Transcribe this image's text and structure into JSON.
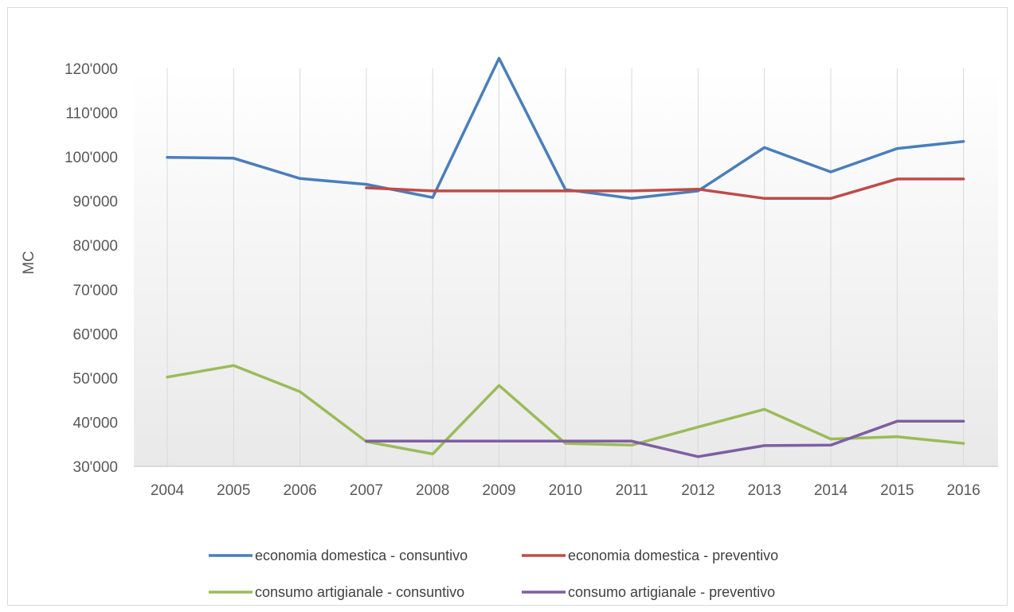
{
  "chart_data": {
    "type": "line",
    "title": "",
    "xlabel": "",
    "ylabel": "MC",
    "ylim": [
      30000,
      120000
    ],
    "y_ticks": [
      30000,
      40000,
      50000,
      60000,
      70000,
      80000,
      90000,
      100000,
      110000,
      120000
    ],
    "y_tick_labels": [
      "30'000",
      "40'000",
      "50'000",
      "60'000",
      "70'000",
      "80'000",
      "90'000",
      "100'000",
      "110'000",
      "120'000"
    ],
    "categories": [
      "2004",
      "2005",
      "2006",
      "2007",
      "2008",
      "2009",
      "2010",
      "2011",
      "2012",
      "2013",
      "2014",
      "2015",
      "2016"
    ],
    "grid": "vertical",
    "legend_position": "bottom",
    "series": [
      {
        "name": "economia domestica - consuntivo",
        "color": "#4a7ebb",
        "values": [
          99900,
          99700,
          95100,
          93800,
          90800,
          122300,
          92600,
          90600,
          92300,
          102100,
          96600,
          101900,
          103500
        ]
      },
      {
        "name": "economia domestica - preventivo",
        "color": "#be4b48",
        "values": [
          null,
          null,
          null,
          93000,
          92300,
          92300,
          92300,
          92300,
          92700,
          90600,
          90600,
          95000,
          95000
        ]
      },
      {
        "name": "consumo artigianale - consuntivo",
        "color": "#9bbb59",
        "values": [
          50200,
          52800,
          46900,
          35600,
          32800,
          48300,
          35200,
          34800,
          38900,
          42900,
          36200,
          36700,
          35200
        ]
      },
      {
        "name": "consumo artigianale - preventivo",
        "color": "#7f5ea3",
        "values": [
          null,
          null,
          null,
          35700,
          35700,
          35700,
          35700,
          35700,
          32200,
          34700,
          34800,
          40200,
          40200
        ]
      }
    ]
  }
}
